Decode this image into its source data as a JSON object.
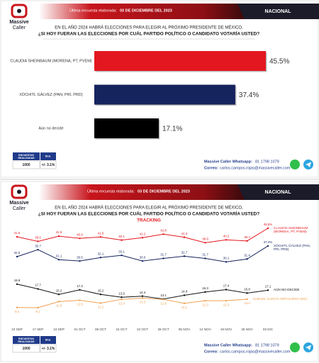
{
  "header": {
    "brand_line1": "Massive",
    "brand_line2": "Caller",
    "survey_date_label": "Última encuesta elaborada:",
    "survey_date": "03 DE DICIEMBRE DEL 2023",
    "scope": "NACIONAL"
  },
  "footer": {
    "surveys_header": "ENCUESTAS REALIZADAS",
    "surveys_value": "1000",
    "margin_header": "M.E.",
    "margin_value": "+/- 3.1%",
    "whatsapp_label": "Massive Caller Whatsapp:",
    "whatsapp_number": "81 1798 1079",
    "email_label": "Correo:",
    "email": "carlos.campos.rojas@massivecaller.com"
  },
  "chart_data": [
    {
      "type": "bar",
      "title_line1": "EN EL AÑO 2024 HABRÁ ELECCIONES PARA ELEGIR AL PRÓXIMO PRESIDENTE DE MÉXICO,",
      "title_line2": "¿SI HOY FUERAN LAS ELECCIONES POR CUÁL PARTIDO POLÍTICO O CANDIDATO VOTARÍA USTED?",
      "categories": [
        "CLAUDIA SHEINBAUM (MORENA, PT, PVEM)",
        "XÓCHITL GÁLVEZ (PAN, PRI, PRD)",
        "Aún no decide"
      ],
      "values": [
        45.5,
        37.4,
        17.1
      ],
      "value_labels": [
        "45.5%",
        "37.4%",
        "17.1%"
      ],
      "colors": [
        "#e3171f",
        "#16245e",
        "#000000"
      ]
    },
    {
      "type": "line",
      "title_line1": "EN EL AÑO 2024 HABRÁ ELECCIONES PARA ELEGIR AL PRÓXIMO PRESIDENTE DE MÉXICO,",
      "title_line2": "¿SI HOY FUERAN LAS ELECCIONES POR CUÁL PARTIDO POLÍTICO O CANDIDATO VOTARÍA USTED?",
      "subtitle": "TRACKING",
      "categories": [
        "10 SEP",
        "17 SEP",
        "24 SEP",
        "01 OCT",
        "08 OCT",
        "15 OCT",
        "22 OCT",
        "29 OCT",
        "05 NOV",
        "12 NOV",
        "19 NOV",
        "26 NOV",
        "03 DIC"
      ],
      "series": [
        {
          "name": "CLAUDIA SHEINBAUM (MORENA, PT, PVEM)",
          "color": "#e3171f",
          "values": [
            41.6,
            39.5,
            41.9,
            40.9,
            41.5,
            40.1,
            41.2,
            42.8,
            41.4,
            38.9,
            40.2,
            39.7,
            45.5
          ],
          "value_labels": [
            "41.6",
            "39.5",
            "41.9",
            "40.9",
            "41.5",
            "40.1",
            "41.2",
            "42.8",
            "41.4",
            "38.9",
            "40.2",
            "39.7",
            "45.5%"
          ]
        },
        {
          "name": "XÓCHITL GÁLVEZ (PAN, PRI, PRD)",
          "color": "#16245e",
          "values": [
            32.5,
            35.7,
            31.1,
            30.5,
            32.1,
            33.1,
            30.5,
            31.7,
            32.7,
            31.7,
            30.1,
            31.4,
            37.4
          ],
          "value_labels": [
            "32.5",
            "35.7",
            "31.1",
            "30.5",
            "32.1",
            "33.1",
            "30.5",
            "31.7",
            "32.7",
            "31.7",
            "30.1",
            "31.4",
            "37.4%"
          ]
        },
        {
          "name": "AÚN NO DECIDE",
          "color": "#111111",
          "values": [
            19.9,
            17.7,
            15.2,
            17.3,
            15.2,
            13.9,
            14.4,
            13.1,
            14.8,
            16.3,
            17.4,
            15.8,
            17.1
          ],
          "value_labels": [
            "19.9",
            "17.7",
            "15.2",
            "17.3",
            "15.2",
            "13.9",
            "14.4",
            "13.1",
            "14.8",
            "16.3",
            "17.4",
            "15.8",
            "17.1"
          ]
        },
        {
          "name": "SAMUEL GARCÍA SEPÚLVEDA (MC)",
          "color": "#f0a050",
          "values": [
            9.2,
            9.1,
            11.9,
            12.5,
            11.2,
            12.9,
            13.5,
            12.9,
            11.1,
            12.3,
            12.3,
            13.0,
            null
          ],
          "value_labels": [
            "9.2",
            "9.1",
            "11.9",
            "12.5",
            "11.2",
            "12.9",
            "13.5",
            "12.9",
            "11.1",
            "12.3",
            "12.3",
            "13.0",
            null
          ]
        }
      ]
    }
  ]
}
